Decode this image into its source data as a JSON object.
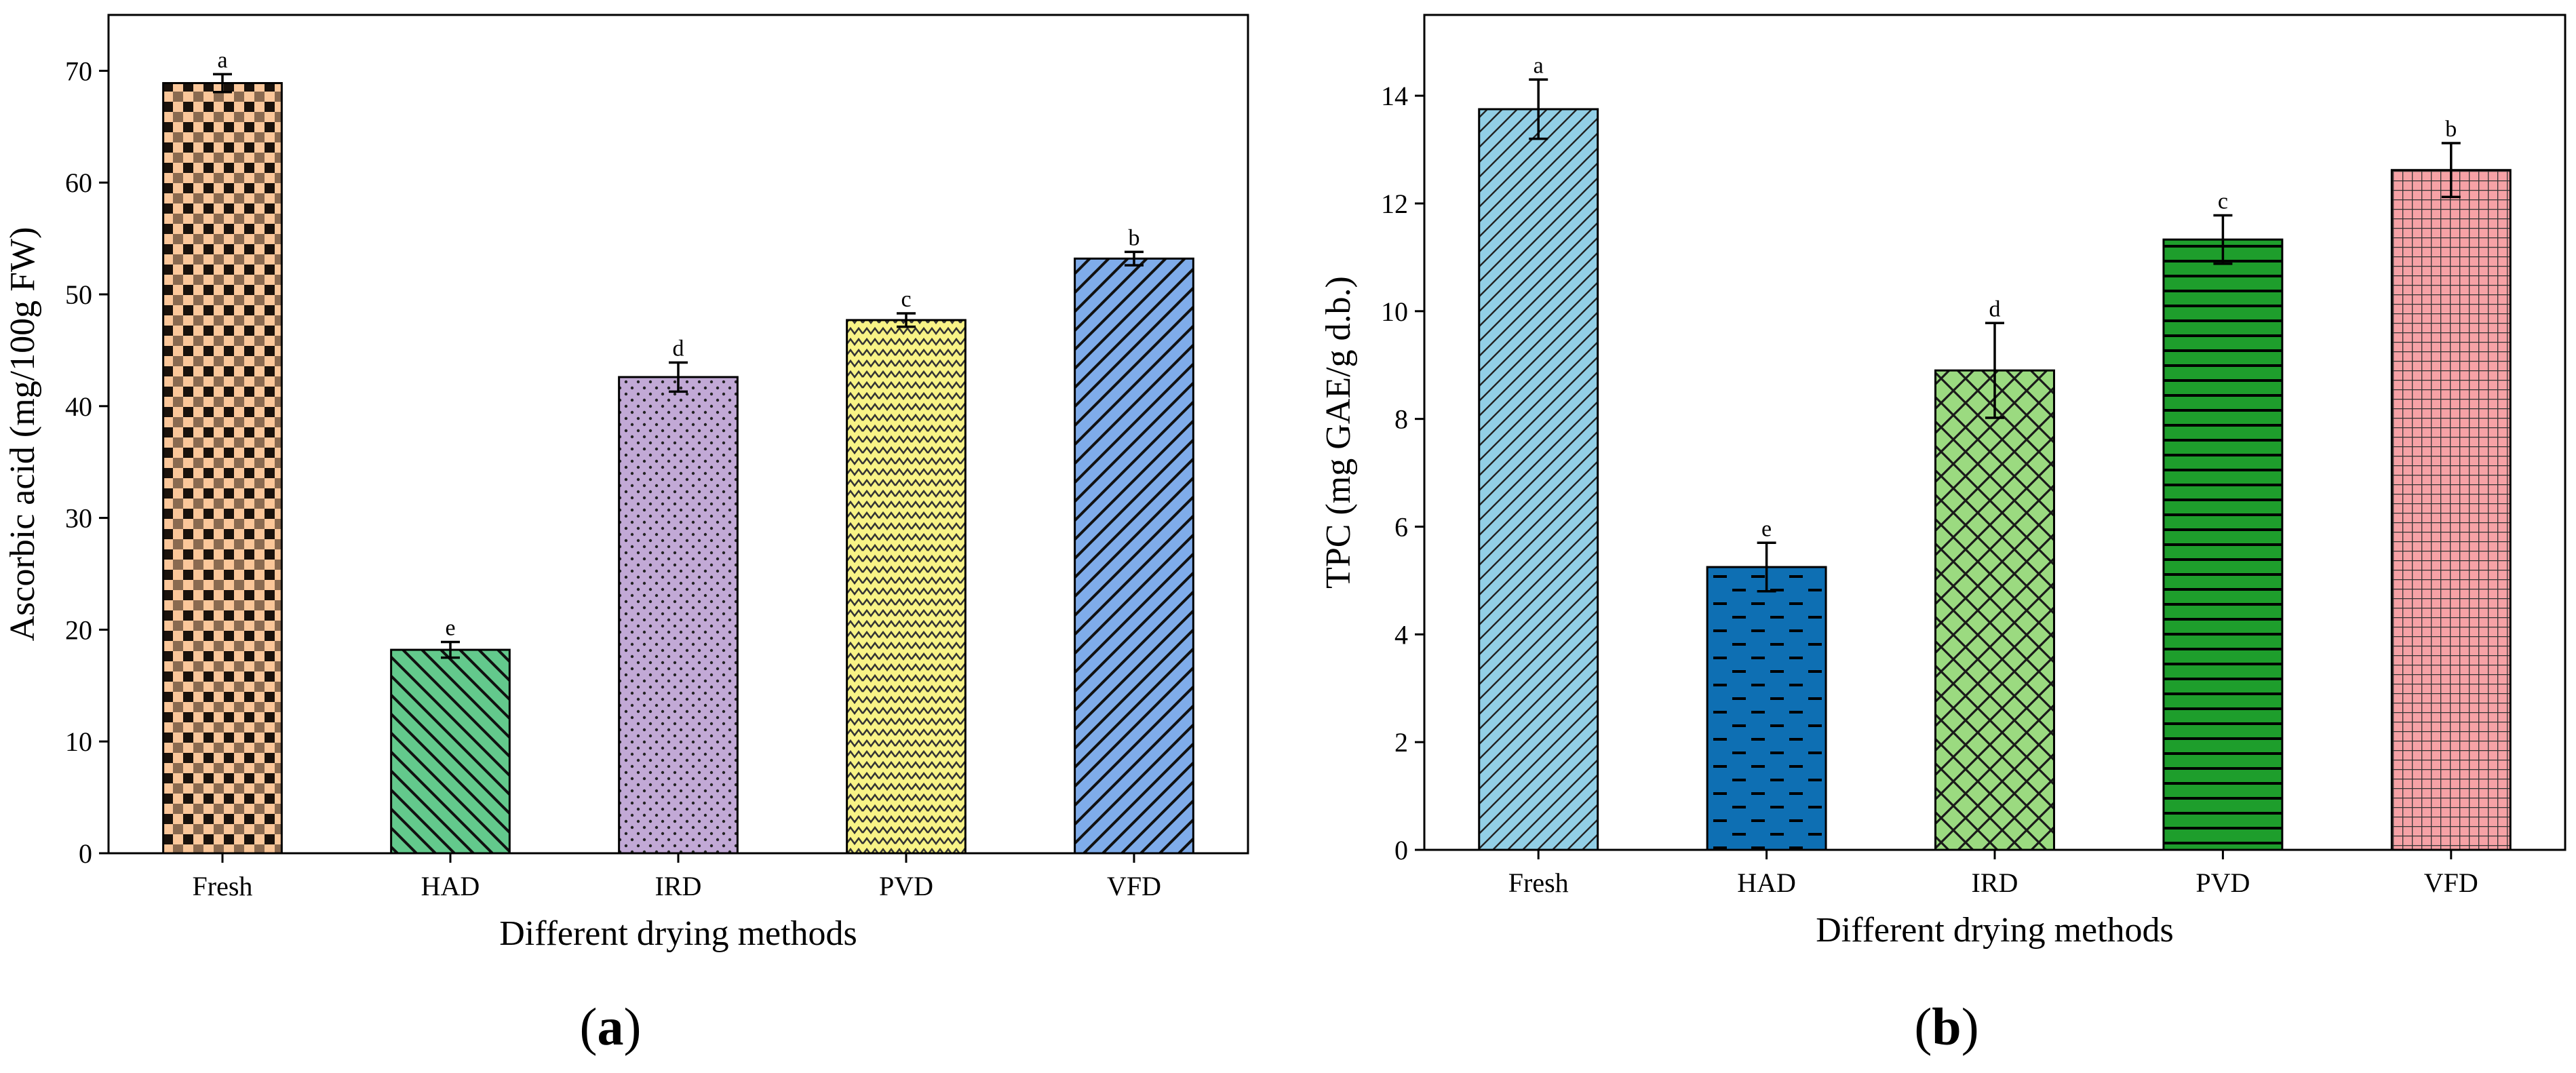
{
  "chart_data": [
    {
      "type": "bar",
      "panel_label": "a",
      "xlabel": "Different drying methods",
      "ylabel": "Ascorbic acid (mg/100g FW)",
      "ylim": [
        0,
        75
      ],
      "yticks": [
        0,
        10,
        20,
        30,
        40,
        50,
        60,
        70
      ],
      "categories": [
        "Fresh",
        "HAD",
        "IRD",
        "PVD",
        "VFD"
      ],
      "values": [
        68.9,
        18.2,
        42.6,
        47.7,
        53.2
      ],
      "errors": [
        0.8,
        0.7,
        1.3,
        0.6,
        0.6
      ],
      "significance": [
        "a",
        "e",
        "d",
        "c",
        "b"
      ],
      "colors": [
        "#fbc79a",
        "#63c98c",
        "#c2a9d6",
        "#f8f386",
        "#7facea"
      ],
      "patterns": [
        "checker",
        "backdiag",
        "dots",
        "wave",
        "fwddiag"
      ]
    },
    {
      "type": "bar",
      "panel_label": "b",
      "xlabel": "Different drying methods",
      "ylabel": "TPC (mg GAE/g d.b.)",
      "ylim": [
        0,
        15.5
      ],
      "yticks": [
        0,
        2,
        4,
        6,
        8,
        10,
        12,
        14
      ],
      "categories": [
        "Fresh",
        "HAD",
        "IRD",
        "PVD",
        "VFD"
      ],
      "values": [
        13.75,
        5.25,
        8.9,
        11.33,
        12.62
      ],
      "errors": [
        0.55,
        0.45,
        0.88,
        0.45,
        0.5
      ],
      "significance": [
        "a",
        "e",
        "d",
        "c",
        "b"
      ],
      "colors": [
        "#92cfe6",
        "#0e6fb3",
        "#9bda80",
        "#1e9e2c",
        "#f6a2a6"
      ],
      "patterns": [
        "fwddiag-fine",
        "dashes",
        "crosshatch",
        "hlines",
        "grid"
      ]
    }
  ]
}
